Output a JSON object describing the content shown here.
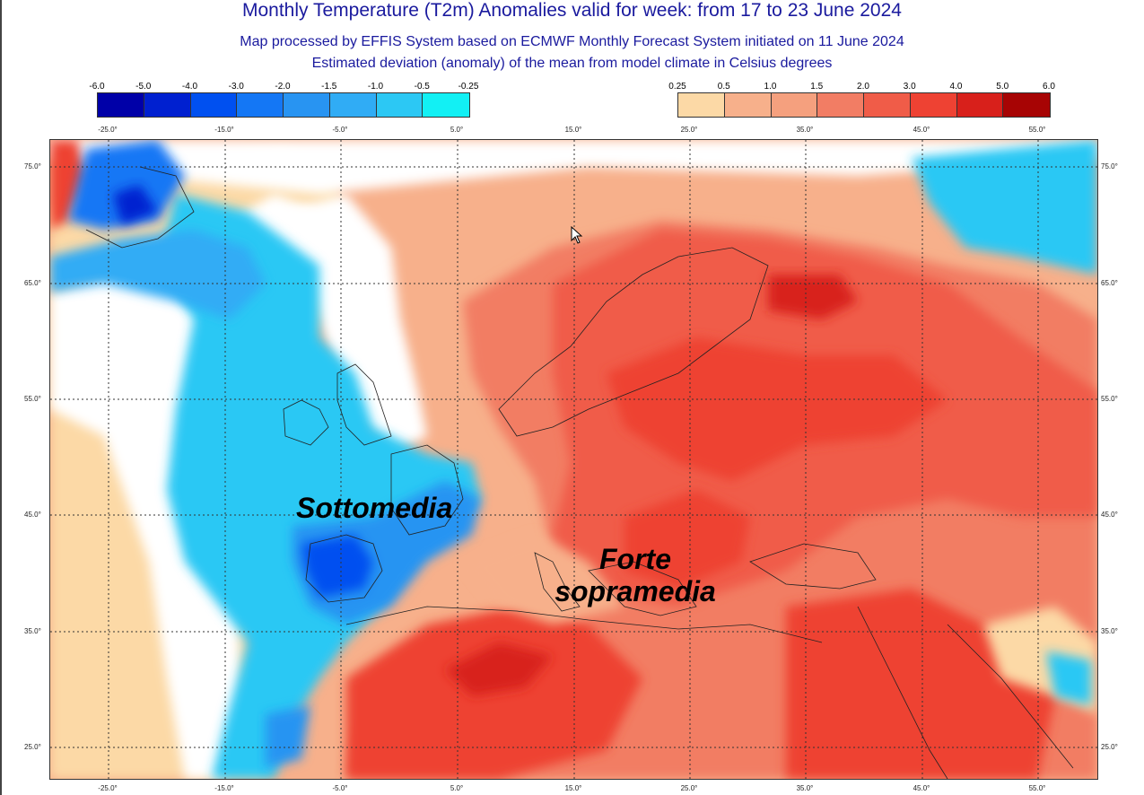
{
  "title": "Monthly Temperature (T2m) Anomalies valid for week: from 17 to 23 June 2024",
  "subtitle1": "Map processed by EFFIS System based on ECMWF Monthly Forecast System initiated on 11 June 2024",
  "subtitle2": "Estimated deviation (anomaly) of the mean from model climate in Celsius degrees",
  "colorbar_neg": {
    "labels": [
      "-6.0",
      "-5.0",
      "-4.0",
      "-3.0",
      "-2.0",
      "-1.5",
      "-1.0",
      "-0.5",
      "-0.25"
    ],
    "colors": [
      "#0000a8",
      "#0020d0",
      "#0050f0",
      "#1477f5",
      "#2894f2",
      "#30acf5",
      "#2cc8f4",
      "#12f0f4"
    ]
  },
  "colorbar_pos": {
    "labels": [
      "0.25",
      "0.5",
      "1.0",
      "1.5",
      "2.0",
      "3.0",
      "4.0",
      "5.0",
      "6.0"
    ],
    "colors": [
      "#fcd9a6",
      "#f7b08b",
      "#f5a07e",
      "#f27d64",
      "#f05c48",
      "#ee4233",
      "#d8201b",
      "#a70404"
    ]
  },
  "lon_labels": [
    "-25.0°",
    "-15.0°",
    "-5.0°",
    "5.0°",
    "15.0°",
    "25.0°",
    "35.0°",
    "45.0°",
    "55.0°"
  ],
  "lat_labels": [
    "75.0°",
    "65.0°",
    "55.0°",
    "45.0°",
    "35.0°",
    "25.0°"
  ],
  "annotations": {
    "below": "Sottomedia",
    "above_line1": "Forte",
    "above_line2": "sopramedia"
  }
}
